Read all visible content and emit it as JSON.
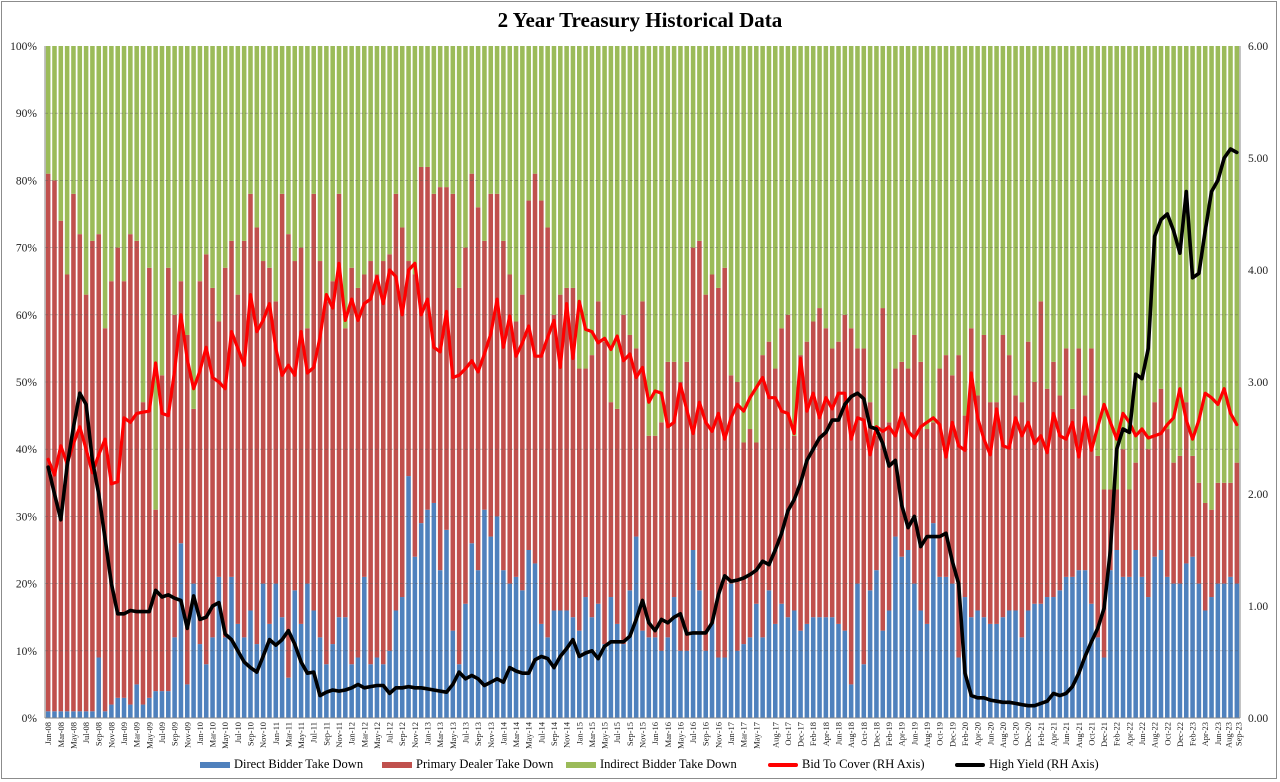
{
  "chart_data": {
    "type": "bar",
    "stacked": true,
    "title": "2 Year Treasury  Historical Data",
    "xlabel": "",
    "ylabel_left": "",
    "ylabel_right": "",
    "ylim_left": [
      0,
      100
    ],
    "ylim_right": [
      0,
      6
    ],
    "y_ticks_left": [
      "0%",
      "10%",
      "20%",
      "30%",
      "40%",
      "50%",
      "60%",
      "70%",
      "80%",
      "90%",
      "100%"
    ],
    "y_ticks_right": [
      "0.00",
      "1.00",
      "2.00",
      "3.00",
      "4.00",
      "5.00",
      "6.00"
    ],
    "grid": true,
    "legend_position": "bottom",
    "first_month": "Jan-08",
    "last_month": "Sep-23",
    "x_tick_labels": [
      "Jan-08",
      "Mar-08",
      "May-08",
      "Jul-08",
      "Sep-08",
      "Nov-08",
      "Jan-09",
      "Mar-09",
      "May-09",
      "Jul-09",
      "Sep-09",
      "Nov-09",
      "Jan-10",
      "Mar-10",
      "May-10",
      "Jul-10",
      "Sep-10",
      "Nov-10",
      "Jan-11",
      "Mar-11",
      "May-11",
      "Jul-11",
      "Sep-11",
      "Nov-11",
      "Jan-12",
      "Mar-12",
      "May-12",
      "Jul-12",
      "Sep-12",
      "Nov-12",
      "Jan-13",
      "Mar-13",
      "May-13",
      "Jul-13",
      "Sep-13",
      "Nov-13",
      "Jan-14",
      "Mar-14",
      "May-14",
      "Jul-14",
      "Sep-14",
      "Nov-14",
      "Jan-15",
      "Mar-15",
      "May-15",
      "Jul-15",
      "Sep-15",
      "Nov-15",
      "Jan-16",
      "Mar-16",
      "May-16",
      "Jul-16",
      "Sep-16",
      "Nov-16",
      "Jan-17",
      "Mar-17",
      "May-17",
      "Aug-17",
      "Oct-17",
      "Dec-17",
      "Feb-18",
      "Apr-18",
      "Jun-18",
      "Aug-18",
      "Oct-18",
      "Dec-18",
      "Feb-19",
      "Apr-19",
      "Jun-19",
      "Aug-19",
      "Oct-19",
      "Dec-19",
      "Feb-20",
      "Apr-20",
      "Jun-20",
      "Aug-20",
      "Oct-20",
      "Dec-20",
      "Feb-21",
      "Apr-21",
      "Jun-21",
      "Aug-21",
      "Oct-21",
      "Dec-21",
      "Feb-22",
      "Apr-22",
      "Jun-22",
      "Aug-22",
      "Oct-22",
      "Dec-22",
      "Feb-23",
      "Apr-23",
      "Jun-23",
      "Aug-23",
      "Sep-23"
    ],
    "x_tick_index": [
      0,
      2,
      4,
      6,
      8,
      10,
      12,
      14,
      16,
      18,
      20,
      22,
      24,
      26,
      28,
      30,
      32,
      34,
      36,
      38,
      40,
      42,
      44,
      46,
      48,
      50,
      52,
      54,
      56,
      58,
      60,
      62,
      64,
      66,
      68,
      70,
      72,
      74,
      76,
      78,
      80,
      82,
      84,
      86,
      88,
      90,
      92,
      94,
      96,
      98,
      100,
      102,
      104,
      106,
      108,
      110,
      112,
      115,
      117,
      119,
      121,
      123,
      125,
      127,
      129,
      131,
      133,
      135,
      137,
      139,
      141,
      143,
      145,
      147,
      149,
      151,
      153,
      155,
      157,
      159,
      161,
      163,
      165,
      167,
      169,
      171,
      173,
      175,
      177,
      179,
      181,
      183,
      185,
      187,
      188
    ],
    "series": [
      {
        "name": "Direct Bidder Take Down",
        "axis": "left",
        "kind": "bar",
        "color": "#4f81bd",
        "values": [
          1,
          1,
          1,
          1,
          1,
          1,
          1,
          1,
          9,
          1,
          2,
          3,
          3,
          2,
          5,
          2,
          3,
          4,
          4,
          4,
          12,
          26,
          5,
          20,
          11,
          8,
          12,
          21,
          12,
          21,
          14,
          12,
          16,
          11,
          20,
          14,
          20,
          15,
          6,
          19,
          14,
          20,
          16,
          12,
          8,
          11,
          15,
          15,
          8,
          9,
          21,
          8,
          9,
          8,
          10,
          16,
          18,
          36,
          24,
          29,
          31,
          32,
          22,
          28,
          13,
          8,
          17,
          26,
          22,
          31,
          27,
          30,
          22,
          20,
          21,
          19,
          25,
          23,
          14,
          12,
          16,
          16,
          16,
          15,
          13,
          18,
          15,
          17,
          11,
          18,
          14,
          11,
          19,
          27,
          13,
          12,
          12,
          10,
          12,
          18,
          10,
          10,
          25,
          19,
          10,
          14,
          9,
          9,
          20,
          10,
          11,
          12,
          17,
          12,
          19,
          14,
          17,
          15,
          16,
          13,
          14,
          15,
          15,
          15,
          15,
          14,
          13,
          5,
          20,
          8,
          19,
          22,
          13,
          16,
          27,
          24,
          25,
          20,
          16,
          14,
          29,
          21,
          21,
          20,
          9,
          18,
          15,
          16,
          15,
          14,
          14,
          15,
          16,
          16,
          12,
          16,
          17,
          17,
          18,
          18,
          19,
          21,
          21,
          22,
          22,
          17,
          12,
          9,
          22,
          25,
          21,
          21,
          25,
          21,
          18,
          24,
          25,
          21,
          20,
          20,
          23,
          24,
          20,
          16,
          18,
          20,
          20,
          21,
          20
        ]
      },
      {
        "name": "Primary Dealer Take Down",
        "axis": "left",
        "kind": "bar",
        "color": "#c0504d",
        "values": [
          80,
          79,
          73,
          65,
          77,
          71,
          62,
          70,
          63,
          57,
          63,
          67,
          62,
          70,
          66,
          45,
          64,
          27,
          47,
          63,
          48,
          39,
          52,
          26,
          54,
          61,
          52,
          38,
          55,
          50,
          49,
          59,
          62,
          62,
          48,
          53,
          42,
          63,
          66,
          49,
          56,
          38,
          62,
          56,
          54,
          54,
          63,
          43,
          59,
          55,
          45,
          60,
          57,
          60,
          59,
          62,
          55,
          32,
          42,
          53,
          51,
          46,
          57,
          51,
          65,
          56,
          53,
          55,
          54,
          40,
          51,
          48,
          49,
          46,
          38,
          44,
          52,
          58,
          63,
          61,
          44,
          47,
          48,
          49,
          39,
          34,
          39,
          45,
          45,
          29,
          32,
          49,
          38,
          28,
          49,
          30,
          30,
          34,
          41,
          35,
          40,
          43,
          45,
          52,
          53,
          52,
          55,
          58,
          31,
          40,
          30,
          31,
          24,
          42,
          37,
          38,
          41,
          45,
          26,
          41,
          42,
          44,
          46,
          43,
          40,
          42,
          47,
          53,
          35,
          47,
          28,
          20,
          48,
          28,
          25,
          29,
          27,
          37,
          37,
          29,
          15,
          31,
          33,
          31,
          45,
          27,
          43,
          32,
          42,
          33,
          33,
          42,
          38,
          32,
          35,
          40,
          33,
          45,
          31,
          35,
          29,
          34,
          25,
          33,
          26,
          38,
          27,
          25,
          12,
          9,
          19,
          13,
          13,
          22,
          22,
          23,
          24,
          22,
          18,
          19,
          24,
          15,
          15,
          16,
          13,
          15,
          15,
          14,
          18
        ]
      },
      {
        "name": "Indirect Bidder Take Down",
        "axis": "left",
        "kind": "bar",
        "color": "#9bbb59",
        "values": [
          19,
          20,
          26,
          34,
          22,
          28,
          37,
          29,
          28,
          42,
          35,
          30,
          35,
          28,
          29,
          53,
          33,
          69,
          49,
          33,
          40,
          35,
          43,
          54,
          35,
          31,
          36,
          41,
          33,
          29,
          37,
          29,
          22,
          27,
          32,
          33,
          38,
          22,
          28,
          32,
          30,
          42,
          22,
          32,
          38,
          35,
          22,
          42,
          33,
          36,
          34,
          32,
          34,
          32,
          31,
          22,
          27,
          32,
          34,
          18,
          18,
          22,
          21,
          21,
          22,
          36,
          30,
          19,
          24,
          29,
          22,
          22,
          29,
          34,
          41,
          37,
          23,
          19,
          23,
          27,
          40,
          37,
          36,
          36,
          48,
          48,
          46,
          38,
          44,
          53,
          54,
          40,
          43,
          45,
          38,
          58,
          58,
          56,
          47,
          47,
          50,
          47,
          30,
          29,
          37,
          34,
          36,
          33,
          49,
          50,
          59,
          57,
          59,
          46,
          44,
          48,
          42,
          40,
          58,
          46,
          44,
          41,
          39,
          42,
          45,
          44,
          40,
          42,
          45,
          45,
          53,
          58,
          39,
          56,
          48,
          47,
          48,
          43,
          47,
          57,
          56,
          48,
          46,
          49,
          46,
          55,
          42,
          52,
          43,
          53,
          53,
          43,
          46,
          52,
          53,
          44,
          50,
          38,
          51,
          47,
          52,
          45,
          54,
          45,
          52,
          45,
          61,
          66,
          66,
          66,
          60,
          66,
          62,
          57,
          60,
          53,
          51,
          57,
          62,
          61,
          53,
          61,
          65,
          68,
          69,
          65,
          65,
          65,
          62
        ]
      },
      {
        "name": "Bid To Cover (RH Axis)",
        "axis": "right",
        "kind": "line",
        "color": "#ff0000",
        "values": [
          2.31,
          2.17,
          2.43,
          2.27,
          2.45,
          2.6,
          2.4,
          2.19,
          2.35,
          2.49,
          2.09,
          2.11,
          2.68,
          2.64,
          2.72,
          2.73,
          2.74,
          3.17,
          2.72,
          2.7,
          3.1,
          3.6,
          3.2,
          2.94,
          3.1,
          3.31,
          3.04,
          3.0,
          2.94,
          3.45,
          3.3,
          3.15,
          3.78,
          3.45,
          3.55,
          3.7,
          3.3,
          3.06,
          3.15,
          3.06,
          3.45,
          3.08,
          3.13,
          3.4,
          3.78,
          3.66,
          4.06,
          3.55,
          3.74,
          3.55,
          3.7,
          3.74,
          3.94,
          3.7,
          4.0,
          3.94,
          3.6,
          4.0,
          4.06,
          3.6,
          3.74,
          3.31,
          3.27,
          3.63,
          3.04,
          3.06,
          3.12,
          3.19,
          3.09,
          3.25,
          3.43,
          3.74,
          3.31,
          3.59,
          3.23,
          3.35,
          3.5,
          3.23,
          3.23,
          3.4,
          3.55,
          3.13,
          3.7,
          3.21,
          3.72,
          3.47,
          3.45,
          3.35,
          3.39,
          3.29,
          3.41,
          3.19,
          3.25,
          3.04,
          3.13,
          2.82,
          2.92,
          2.9,
          2.6,
          2.64,
          2.98,
          2.75,
          2.54,
          2.82,
          2.64,
          2.56,
          2.72,
          2.49,
          2.68,
          2.8,
          2.74,
          2.86,
          2.95,
          3.04,
          2.86,
          2.86,
          2.74,
          2.72,
          2.54,
          3.21,
          2.74,
          2.9,
          2.68,
          2.86,
          2.76,
          2.9,
          2.9,
          2.49,
          2.68,
          2.66,
          2.35,
          2.6,
          2.56,
          2.6,
          2.52,
          2.72,
          2.56,
          2.5,
          2.6,
          2.64,
          2.68,
          2.62,
          2.33,
          2.64,
          2.43,
          2.39,
          3.08,
          2.68,
          2.49,
          2.35,
          2.76,
          2.43,
          2.41,
          2.68,
          2.52,
          2.64,
          2.45,
          2.52,
          2.37,
          2.72,
          2.52,
          2.49,
          2.64,
          2.33,
          2.68,
          2.39,
          2.6,
          2.8,
          2.64,
          2.49,
          2.72,
          2.64,
          2.52,
          2.58,
          2.5,
          2.52,
          2.54,
          2.62,
          2.68,
          2.94,
          2.66,
          2.49,
          2.66,
          2.9,
          2.86,
          2.8,
          2.94,
          2.72,
          2.62
        ]
      },
      {
        "name": "High Yield (RH Axis)",
        "axis": "right",
        "kind": "line",
        "color": "#000000",
        "values": [
          2.24,
          2.0,
          1.77,
          2.25,
          2.6,
          2.9,
          2.8,
          2.3,
          2.0,
          1.6,
          1.2,
          0.93,
          0.93,
          0.96,
          0.95,
          0.95,
          0.95,
          1.14,
          1.08,
          1.1,
          1.07,
          1.05,
          0.8,
          1.09,
          0.88,
          0.9,
          1.0,
          1.03,
          0.75,
          0.7,
          0.6,
          0.5,
          0.45,
          0.41,
          0.55,
          0.7,
          0.65,
          0.7,
          0.78,
          0.66,
          0.5,
          0.4,
          0.41,
          0.2,
          0.23,
          0.25,
          0.24,
          0.25,
          0.27,
          0.3,
          0.27,
          0.28,
          0.29,
          0.29,
          0.22,
          0.27,
          0.27,
          0.28,
          0.27,
          0.27,
          0.26,
          0.25,
          0.24,
          0.23,
          0.3,
          0.41,
          0.35,
          0.38,
          0.35,
          0.29,
          0.32,
          0.35,
          0.32,
          0.45,
          0.42,
          0.4,
          0.4,
          0.52,
          0.55,
          0.53,
          0.45,
          0.55,
          0.62,
          0.7,
          0.55,
          0.58,
          0.6,
          0.53,
          0.64,
          0.68,
          0.68,
          0.68,
          0.73,
          0.88,
          1.05,
          0.85,
          0.78,
          0.88,
          0.85,
          0.9,
          0.93,
          0.75,
          0.76,
          0.76,
          0.76,
          0.85,
          1.1,
          1.27,
          1.22,
          1.23,
          1.25,
          1.28,
          1.32,
          1.4,
          1.37,
          1.5,
          1.65,
          1.85,
          1.95,
          2.1,
          2.3,
          2.4,
          2.5,
          2.55,
          2.66,
          2.66,
          2.8,
          2.87,
          2.9,
          2.85,
          2.6,
          2.58,
          2.45,
          2.25,
          2.3,
          1.9,
          1.7,
          1.8,
          1.53,
          1.62,
          1.62,
          1.62,
          1.65,
          1.4,
          1.2,
          0.4,
          0.2,
          0.18,
          0.18,
          0.16,
          0.15,
          0.14,
          0.14,
          0.13,
          0.12,
          0.11,
          0.11,
          0.13,
          0.15,
          0.22,
          0.2,
          0.22,
          0.28,
          0.4,
          0.55,
          0.68,
          0.8,
          0.98,
          1.5,
          2.4,
          2.58,
          2.55,
          3.07,
          3.03,
          3.3,
          4.3,
          4.45,
          4.5,
          4.35,
          4.15,
          4.7,
          3.93,
          3.97,
          4.35,
          4.7,
          4.8,
          5.0,
          5.08,
          5.05
        ]
      }
    ]
  }
}
